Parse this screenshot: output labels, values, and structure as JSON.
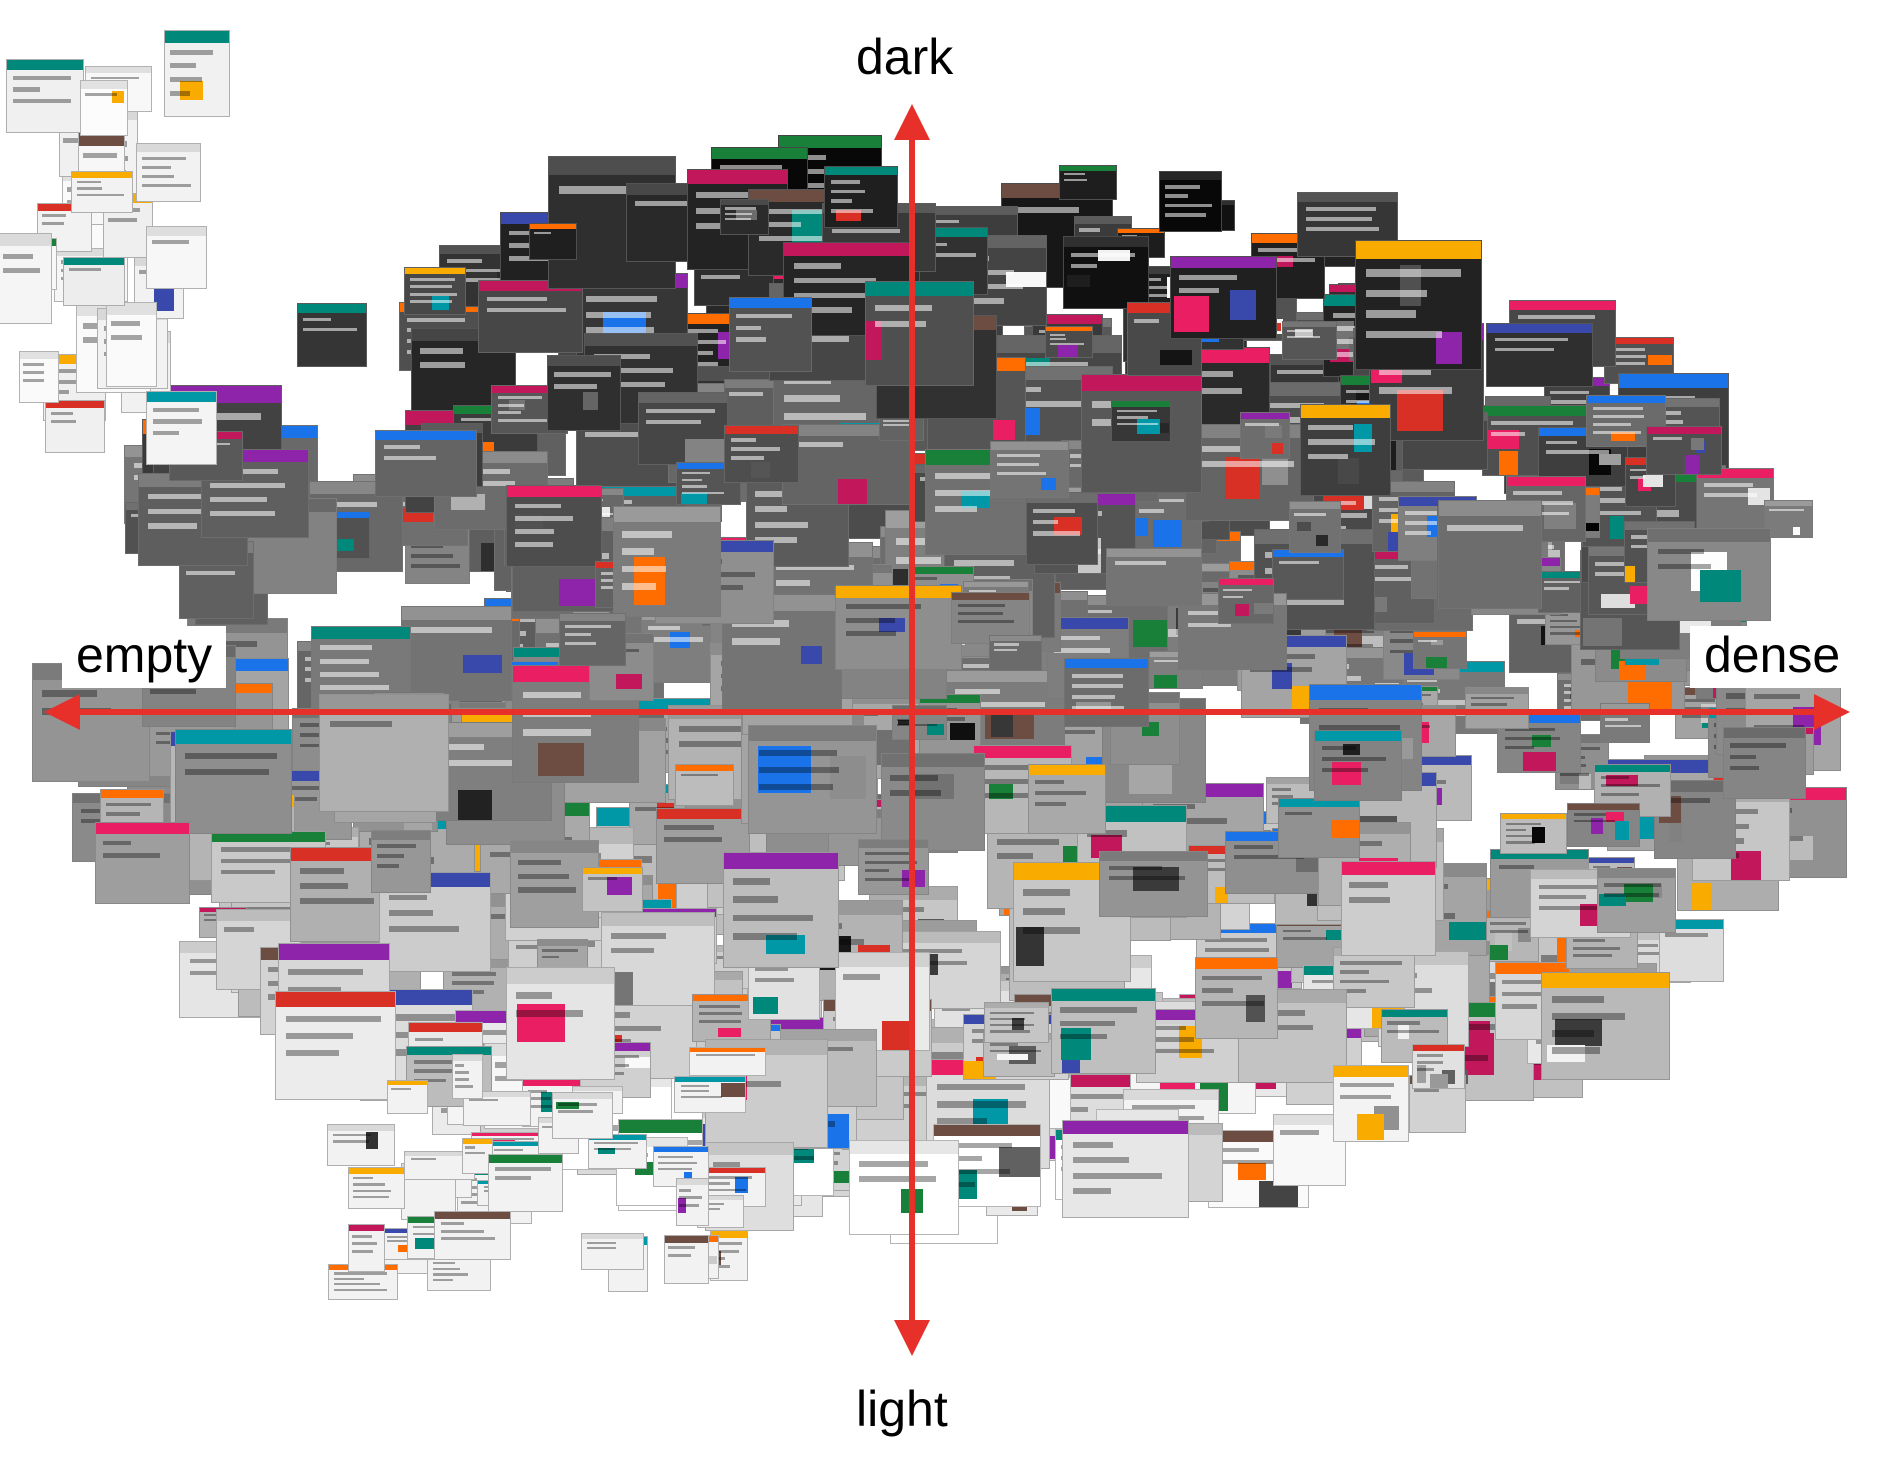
{
  "axes": {
    "top_label": "dark",
    "bottom_label": "light",
    "left_label": "empty",
    "right_label": "dense",
    "arrow_color": "#e8302a"
  },
  "collage": {
    "background": "#ffffff",
    "content": "webpage screenshot thumbnails"
  }
}
